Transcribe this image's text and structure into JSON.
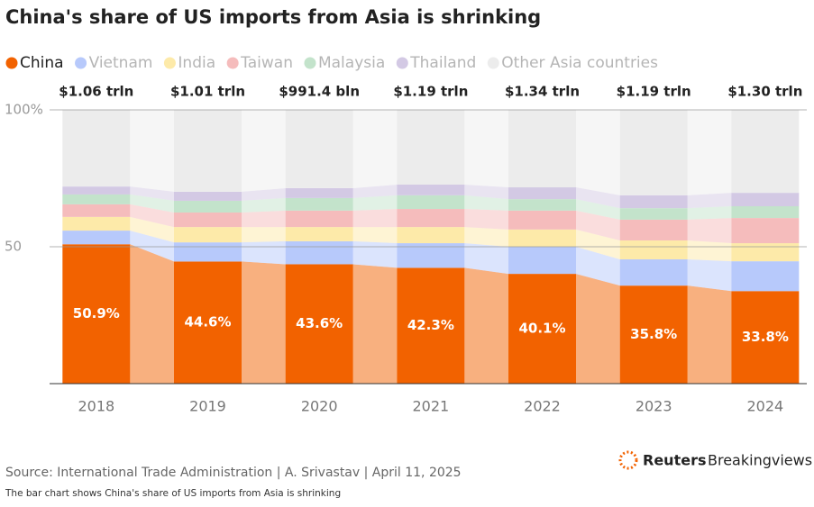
{
  "chart_data": {
    "type": "stacked_bar",
    "title": "China's share of US imports from Asia is shrinking",
    "categories": [
      "2018",
      "2019",
      "2020",
      "2021",
      "2022",
      "2023",
      "2024"
    ],
    "totals": [
      "$1.06 trln",
      "$1.01 trln",
      "$991.4 bln",
      "$1.19 trln",
      "$1.34 trln",
      "$1.19 trln",
      "$1.30 trln"
    ],
    "series": [
      {
        "name": "China",
        "color": "#f26200",
        "values": [
          50.9,
          44.6,
          43.6,
          42.3,
          40.1,
          35.8,
          33.8
        ],
        "value_labels": [
          "50.9%",
          "44.6%",
          "43.6%",
          "42.3%",
          "40.1%",
          "35.8%",
          "33.8%"
        ]
      },
      {
        "name": "Vietnam",
        "color": "#b7c9fb",
        "values": [
          5.0,
          7.0,
          8.4,
          9.0,
          9.9,
          9.6,
          10.9
        ]
      },
      {
        "name": "India",
        "color": "#fdeaa9",
        "values": [
          5.0,
          5.6,
          5.2,
          5.9,
          6.3,
          6.9,
          6.6
        ]
      },
      {
        "name": "Taiwan",
        "color": "#f5bcbc",
        "values": [
          4.6,
          5.3,
          6.0,
          6.6,
          6.9,
          7.6,
          9.2
        ]
      },
      {
        "name": "Malaysia",
        "color": "#c3e3cb",
        "values": [
          3.6,
          4.3,
          4.6,
          5.0,
          4.2,
          4.2,
          4.3
        ]
      },
      {
        "name": "Thailand",
        "color": "#d3c9e4",
        "values": [
          2.9,
          3.3,
          3.6,
          3.9,
          4.3,
          4.7,
          4.9
        ]
      },
      {
        "name": "Other Asia countries",
        "color": "#ececec",
        "values": [
          28.0,
          29.9,
          28.6,
          27.3,
          28.3,
          31.2,
          30.3
        ]
      }
    ],
    "ylim": [
      0,
      100
    ],
    "yticks": [
      {
        "value": 100,
        "label": "100%"
      },
      50
    ],
    "grid": true,
    "source": "Source: International Trade Administration | A. Srivastav | April 11, 2025",
    "note": "The bar chart shows China's share of US imports from Asia is shrinking",
    "logo_brand": "Reuters",
    "logo_product": "Breakingviews"
  }
}
